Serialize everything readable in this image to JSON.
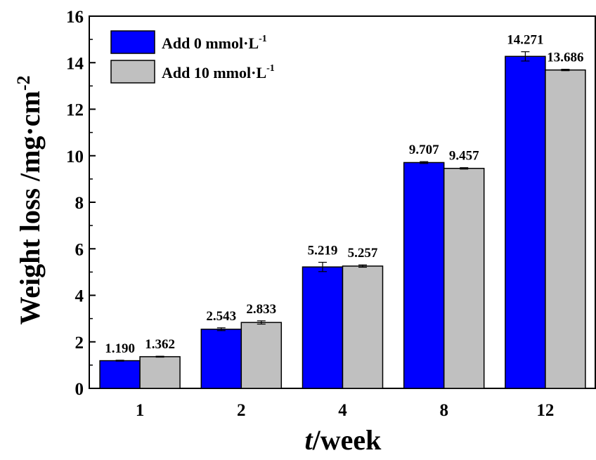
{
  "chart_data": {
    "type": "bar",
    "categories": [
      "1",
      "2",
      "4",
      "8",
      "12"
    ],
    "series": [
      {
        "name": "Add 0 mmol·L",
        "superscript": "-1",
        "color": "#0000ff",
        "values": [
          1.19,
          2.543,
          5.219,
          9.707,
          14.271
        ],
        "errors": [
          0.02,
          0.06,
          0.2,
          0.04,
          0.2
        ],
        "labels": [
          "1.190",
          "2.543",
          "5.219",
          "9.707",
          "14.271"
        ]
      },
      {
        "name": "Add 10 mmol·L",
        "superscript": "-1",
        "color": "#c0c0c0",
        "values": [
          1.362,
          2.833,
          5.257,
          9.457,
          13.686
        ],
        "errors": [
          0.02,
          0.07,
          0.05,
          0.03,
          0.03
        ],
        "labels": [
          "1.362",
          "2.833",
          "5.257",
          "9.457",
          "13.686"
        ]
      }
    ],
    "ylabel": {
      "text": "Weight loss /mg·cm",
      "superscript": "-2"
    },
    "xlabel": {
      "italic": "t",
      "rest": "/week"
    },
    "ylim": [
      0,
      16
    ],
    "yticks": [
      "0",
      "2",
      "4",
      "6",
      "8",
      "10",
      "12",
      "14",
      "16"
    ],
    "legend_position": "top-left",
    "grid": false
  }
}
